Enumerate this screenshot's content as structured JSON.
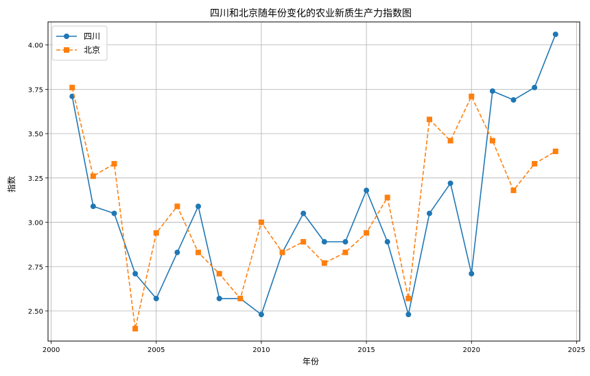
{
  "chart_data": {
    "type": "line",
    "title": "四川和北京随年份变化的农业新质生产力指数图",
    "xlabel": "年份",
    "ylabel": "指数",
    "xlim": [
      1999.85,
      2025.15
    ],
    "ylim": [
      2.33,
      4.13
    ],
    "xticks": [
      2000,
      2005,
      2010,
      2015,
      2020,
      2025
    ],
    "yticks": [
      2.5,
      2.75,
      3.0,
      3.25,
      3.5,
      3.75,
      4.0
    ],
    "grid": true,
    "legend_position": "top-left",
    "x": [
      2001,
      2002,
      2003,
      2004,
      2005,
      2006,
      2007,
      2008,
      2009,
      2010,
      2011,
      2012,
      2013,
      2014,
      2015,
      2016,
      2017,
      2018,
      2019,
      2020,
      2021,
      2022,
      2023,
      2024
    ],
    "series": [
      {
        "name": "四川",
        "color": "#1f77b4",
        "marker": "circle",
        "linestyle": "solid",
        "values": [
          3.71,
          3.09,
          3.05,
          2.71,
          2.57,
          2.83,
          3.09,
          2.57,
          2.57,
          2.48,
          2.83,
          3.05,
          2.89,
          2.89,
          3.18,
          2.89,
          2.48,
          3.05,
          3.22,
          2.71,
          3.74,
          3.69,
          3.76,
          4.06
        ]
      },
      {
        "name": "北京",
        "color": "#ff7f0e",
        "marker": "square",
        "linestyle": "dashed",
        "values": [
          3.76,
          3.26,
          3.33,
          2.4,
          2.94,
          3.09,
          2.83,
          2.71,
          2.57,
          3.0,
          2.83,
          2.89,
          2.77,
          2.83,
          2.94,
          3.14,
          2.57,
          3.58,
          3.46,
          3.71,
          3.46,
          3.18,
          3.33,
          3.4
        ]
      }
    ]
  }
}
